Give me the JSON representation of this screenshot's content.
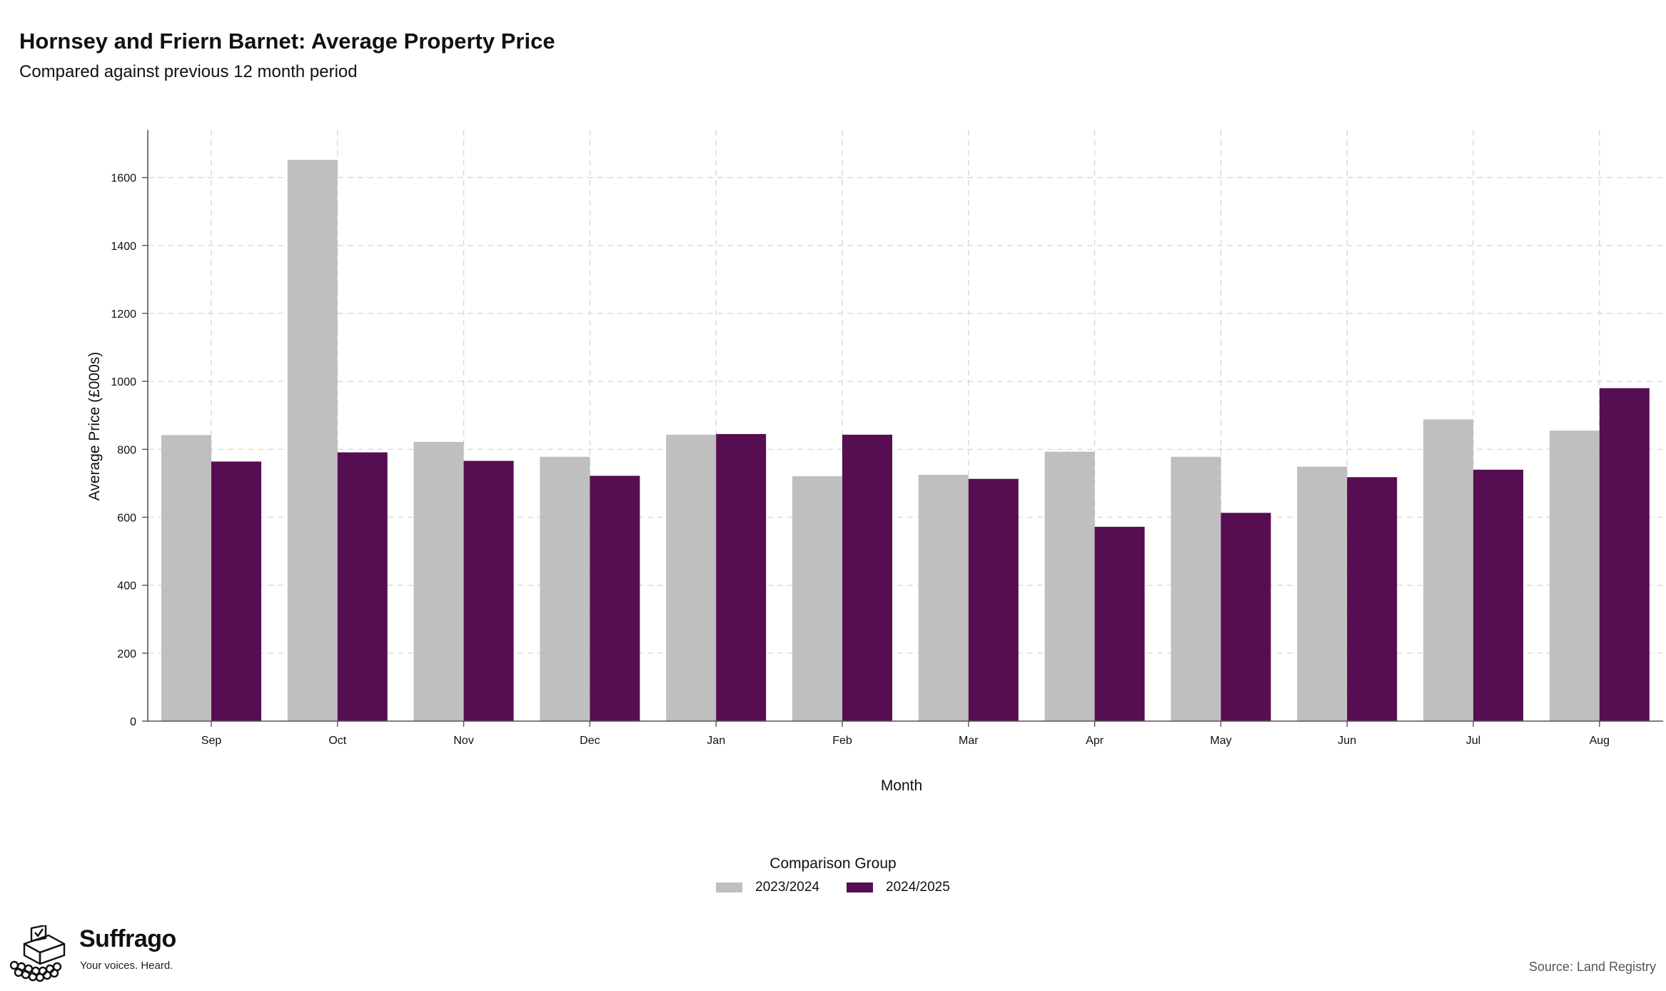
{
  "chart_data": {
    "type": "bar",
    "title": "Hornsey and Friern Barnet: Average Property Price",
    "subtitle": "Compared against previous 12 month period",
    "xlabel": "Month",
    "ylabel": "Average Price (£000s)",
    "categories": [
      "Sep",
      "Oct",
      "Nov",
      "Dec",
      "Jan",
      "Feb",
      "Mar",
      "Apr",
      "May",
      "Jun",
      "Jul",
      "Aug"
    ],
    "series": [
      {
        "name": "2023/2024",
        "color": "#bfbfbf",
        "values": [
          842,
          1652,
          822,
          778,
          843,
          721,
          725,
          793,
          778,
          749,
          888,
          855
        ]
      },
      {
        "name": "2024/2025",
        "color": "#560d52",
        "values": [
          764,
          791,
          766,
          722,
          845,
          843,
          713,
          572,
          613,
          718,
          740,
          980
        ]
      }
    ],
    "ylim": [
      0,
      1740
    ],
    "yticks": [
      0,
      200,
      400,
      600,
      800,
      1000,
      1200,
      1400,
      1600
    ],
    "grid": true,
    "legend_title": "Comparison Group",
    "legend_position": "bottom"
  },
  "branding": {
    "name": "Suffrago",
    "tagline": "Your voices. Heard."
  },
  "source": "Source: Land Registry"
}
